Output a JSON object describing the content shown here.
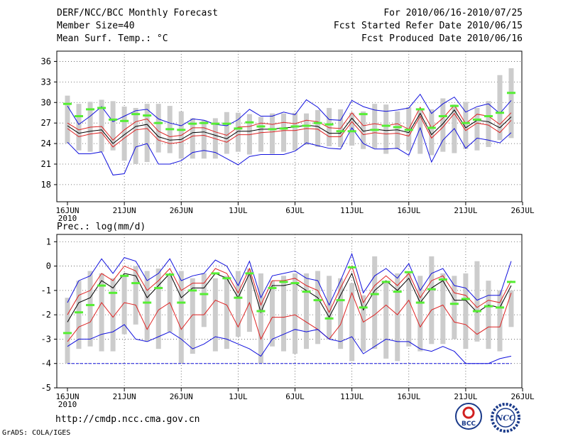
{
  "header": {
    "title": "DERF/NCC/BCC Monthly Forecast",
    "member_size": "Member Size=40",
    "variable": "Mean Surf. Temp.: °C",
    "period": "For 2010/06/16-2010/07/25",
    "started": "Fcst Started Refer Date 2010/06/15",
    "produced": "Fcst Produced Date 2010/06/16"
  },
  "footer": {
    "url": "http://cmdp.ncc.cma.gov.cn",
    "grads": "GrADS: COLA/IGES",
    "logo_bcc": "BCC",
    "logo_ncc": "NCC"
  },
  "colors": {
    "bar": "#cccccc",
    "median": "#55ee33",
    "mean": "#000000",
    "inner": "#dd2222",
    "outer": "#1111dd",
    "floor": "#1111dd"
  },
  "chart_data": [
    {
      "type": "line",
      "title": "Mean Surf. Temp.: °C",
      "x_ticks": [
        "16JUN",
        "21JUN",
        "26JUN",
        "1JUL",
        "6JUL",
        "11JUL",
        "16JUL",
        "21JUL",
        "26JUL"
      ],
      "x_sublabel": "2010",
      "y_ticks": [
        18,
        21,
        24,
        27,
        30,
        33,
        36
      ],
      "ylim": [
        15.5,
        37.5
      ],
      "days": 40,
      "bar_top": [
        31.0,
        29.8,
        30.1,
        30.4,
        30.2,
        29.4,
        29.2,
        29.8,
        29.8,
        29.5,
        28.7,
        27.7,
        27.4,
        27.7,
        28.6,
        28.5,
        28.3,
        27.9,
        28.4,
        28.4,
        28.5,
        28.4,
        28.9,
        29.2,
        29.0,
        28.5,
        28.7,
        29.8,
        29.7,
        28.7,
        29.3,
        28.9,
        29.0,
        30.6,
        29.7,
        30.1,
        29.2,
        30.2,
        34.0,
        35.0
      ],
      "bar_bottom": [
        24.0,
        23.0,
        22.8,
        22.8,
        23.0,
        21.5,
        21.0,
        21.3,
        22.7,
        22.6,
        21.8,
        21.8,
        21.8,
        21.8,
        22.5,
        22.8,
        22.4,
        22.8,
        22.5,
        22.8,
        23.0,
        23.8,
        23.5,
        23.6,
        23.5,
        23.7,
        23.2,
        23.3,
        22.5,
        23.2,
        23.0,
        22.5,
        22.3,
        22.8,
        22.6,
        23.2,
        23.0,
        23.5,
        24.5,
        24.8
      ],
      "series": [
        {
          "name": "median",
          "values": [
            29.8,
            28.0,
            29.0,
            29.2,
            27.5,
            27.3,
            28.3,
            28.1,
            27.0,
            26.1,
            26.0,
            26.9,
            27.0,
            26.9,
            26.9,
            26.2,
            27.1,
            26.5,
            26.1,
            26.2,
            26.5,
            26.6,
            27.0,
            26.8,
            25.8,
            25.8,
            28.3,
            26.0,
            26.6,
            26.4,
            26.0,
            29.0,
            26.3,
            28.0,
            29.5,
            27.0,
            27.5,
            28.0,
            28.5,
            31.4
          ]
        },
        {
          "name": "outer_upper",
          "values": [
            29.5,
            26.8,
            28.0,
            29.4,
            27.2,
            28.0,
            28.8,
            29.0,
            27.6,
            27.0,
            26.6,
            27.6,
            27.4,
            26.8,
            26.6,
            27.5,
            29.0,
            28.0,
            28.0,
            28.6,
            28.2,
            30.4,
            29.3,
            27.5,
            27.4,
            30.3,
            29.4,
            28.9,
            28.7,
            28.9,
            29.2,
            31.2,
            28.4,
            29.8,
            30.8,
            28.6,
            29.4,
            29.8,
            28.4,
            30.3
          ]
        },
        {
          "name": "inner_upper",
          "values": [
            27.0,
            26.0,
            26.4,
            26.5,
            24.5,
            26.0,
            27.2,
            27.6,
            25.8,
            25.0,
            25.2,
            26.3,
            26.3,
            25.7,
            25.2,
            26.4,
            26.5,
            27.0,
            26.8,
            27.1,
            26.9,
            27.4,
            27.2,
            26.3,
            26.2,
            28.5,
            26.6,
            26.9,
            26.6,
            26.9,
            26.1,
            29.3,
            26.3,
            27.7,
            29.6,
            26.9,
            28.3,
            28.0,
            26.8,
            28.5
          ]
        },
        {
          "name": "mean",
          "values": [
            26.6,
            25.5,
            25.8,
            26.0,
            24.0,
            25.3,
            26.5,
            26.8,
            25.0,
            24.5,
            24.6,
            25.6,
            25.7,
            25.2,
            24.7,
            25.8,
            25.8,
            26.1,
            26.1,
            26.3,
            26.4,
            26.7,
            26.5,
            25.5,
            25.5,
            27.7,
            25.8,
            26.1,
            25.9,
            26.0,
            25.6,
            28.4,
            25.3,
            26.9,
            28.9,
            26.3,
            27.4,
            27.2,
            26.3,
            27.9
          ]
        },
        {
          "name": "inner_lower",
          "values": [
            26.2,
            25.0,
            25.4,
            25.6,
            23.5,
            24.8,
            26.0,
            26.2,
            24.5,
            24.0,
            24.2,
            25.1,
            25.2,
            24.7,
            24.2,
            25.3,
            25.3,
            25.6,
            25.7,
            25.9,
            25.9,
            26.2,
            26.1,
            25.0,
            25.0,
            27.2,
            25.3,
            25.6,
            25.4,
            25.5,
            25.1,
            28.0,
            24.8,
            26.4,
            28.4,
            25.9,
            27.0,
            26.7,
            25.6,
            27.4
          ]
        },
        {
          "name": "outer_lower",
          "values": [
            24.2,
            22.5,
            22.5,
            22.8,
            19.4,
            19.6,
            23.5,
            24.0,
            21.0,
            21.0,
            21.5,
            22.7,
            23.0,
            22.7,
            21.8,
            20.9,
            22.1,
            22.4,
            22.4,
            22.4,
            22.9,
            24.1,
            23.7,
            23.3,
            23.2,
            26.3,
            24.0,
            23.2,
            23.2,
            23.3,
            22.3,
            26.3,
            21.3,
            24.5,
            26.2,
            23.3,
            24.8,
            24.5,
            24.1,
            25.6
          ]
        }
      ]
    },
    {
      "type": "line",
      "title": "Prec.: log(mm/d)",
      "x_ticks": [
        "16JUN",
        "21JUN",
        "26JUN",
        "1JUL",
        "6JUL",
        "11JUL",
        "16JUL",
        "21JUL",
        "26JUL"
      ],
      "x_sublabel": "2010",
      "y_ticks": [
        -5,
        -4,
        -3,
        -2,
        -1,
        0,
        1
      ],
      "ylim": [
        -5,
        1.3
      ],
      "days": 40,
      "floor": -4,
      "bar_top": [
        -1.3,
        -0.6,
        -0.2,
        -0.3,
        -0.5,
        -0.4,
        0.0,
        -0.2,
        -0.1,
        -0.4,
        -0.2,
        -0.5,
        -0.3,
        -0.5,
        -0.4,
        -0.2,
        -0.1,
        -0.3,
        -0.6,
        -0.4,
        -0.3,
        -0.3,
        -0.2,
        -0.4,
        -0.5,
        -0.7,
        -1.2,
        0.4,
        -0.6,
        -0.3,
        -0.3,
        -0.4,
        0.4,
        -0.3,
        -0.4,
        -0.3,
        0.2,
        -0.6,
        -1.0,
        -1.0
      ],
      "bar_bottom": [
        -4.0,
        -3.4,
        -3.3,
        -3.5,
        -3.5,
        -2.8,
        -2.4,
        -3.1,
        -3.4,
        -2.7,
        -4.0,
        -3.6,
        -2.5,
        -3.5,
        -3.4,
        -2.9,
        -2.7,
        -4.0,
        -3.3,
        -3.5,
        -3.6,
        -3.4,
        -3.2,
        -3.0,
        -3.4,
        -3.9,
        -3.5,
        -3.4,
        -3.8,
        -3.9,
        -3.3,
        -3.5,
        -3.2,
        -3.2,
        -3.0,
        -3.4,
        -3.1,
        -3.4,
        -3.5,
        -2.5
      ],
      "series": [
        {
          "name": "median",
          "values": [
            -2.75,
            -1.9,
            -1.6,
            -0.8,
            -1.1,
            -0.4,
            -0.7,
            -1.5,
            -0.9,
            -0.35,
            -1.5,
            -1.0,
            -1.15,
            -0.3,
            -0.5,
            -1.3,
            -0.3,
            -1.85,
            -0.9,
            -0.65,
            -0.7,
            -1.05,
            -1.4,
            -2.15,
            -1.4,
            -0.05,
            -1.7,
            -1.15,
            -0.65,
            -1.05,
            -0.25,
            -1.5,
            -0.95,
            -0.55,
            -1.55,
            -1.35,
            -1.85,
            -1.65,
            -1.7,
            -0.65
          ]
        },
        {
          "name": "outer_upper",
          "values": [
            -1.5,
            -0.6,
            -0.4,
            0.3,
            -0.3,
            0.35,
            0.2,
            -0.6,
            -0.3,
            0.3,
            -0.6,
            -0.4,
            -0.3,
            0.25,
            0.0,
            -0.8,
            0.2,
            -1.3,
            -0.4,
            -0.3,
            -0.2,
            -0.5,
            -0.6,
            -1.6,
            -0.6,
            0.5,
            -1.1,
            -0.4,
            -0.1,
            -0.5,
            0.1,
            -1.0,
            -0.3,
            -0.1,
            -0.8,
            -0.9,
            -1.4,
            -1.2,
            -1.2,
            0.2
          ]
        },
        {
          "name": "inner_upper",
          "values": [
            -2.0,
            -1.2,
            -1.0,
            -0.3,
            -0.6,
            0.0,
            -0.2,
            -1.0,
            -0.6,
            -0.1,
            -1.0,
            -0.7,
            -0.7,
            -0.1,
            -0.3,
            -1.1,
            -0.1,
            -1.6,
            -0.6,
            -0.6,
            -0.5,
            -0.8,
            -1.0,
            -1.9,
            -0.9,
            0.0,
            -1.5,
            -0.8,
            -0.4,
            -0.8,
            -0.3,
            -1.3,
            -0.6,
            -0.4,
            -1.1,
            -1.2,
            -1.7,
            -1.4,
            -1.5,
            -0.6
          ]
        },
        {
          "name": "mean",
          "values": [
            -2.3,
            -1.5,
            -1.3,
            -0.6,
            -0.9,
            -0.3,
            -0.4,
            -1.3,
            -0.8,
            -0.3,
            -1.3,
            -0.9,
            -0.9,
            -0.3,
            -0.5,
            -1.3,
            -0.3,
            -1.9,
            -0.8,
            -0.8,
            -0.7,
            -1.0,
            -1.3,
            -2.1,
            -1.2,
            -0.3,
            -1.8,
            -1.0,
            -0.6,
            -1.0,
            -0.5,
            -1.5,
            -0.9,
            -0.6,
            -1.4,
            -1.4,
            -1.9,
            -1.6,
            -1.7,
            -0.8
          ]
        },
        {
          "name": "inner_lower",
          "values": [
            -3.1,
            -2.5,
            -2.3,
            -1.5,
            -2.1,
            -1.5,
            -1.6,
            -2.6,
            -1.8,
            -1.5,
            -2.6,
            -2.0,
            -2.0,
            -1.4,
            -1.6,
            -2.5,
            -1.5,
            -3.0,
            -2.1,
            -2.1,
            -2.0,
            -2.3,
            -2.6,
            -3.0,
            -2.4,
            -1.1,
            -2.3,
            -2.0,
            -1.6,
            -2.0,
            -1.4,
            -2.5,
            -1.8,
            -1.6,
            -2.3,
            -2.4,
            -2.8,
            -2.5,
            -2.5,
            -1.1
          ]
        },
        {
          "name": "outer_lower",
          "values": [
            -3.3,
            -3.0,
            -3.0,
            -2.8,
            -2.7,
            -2.4,
            -3.0,
            -3.1,
            -2.9,
            -2.7,
            -3.0,
            -3.4,
            -3.2,
            -2.9,
            -3.0,
            -3.2,
            -3.4,
            -3.7,
            -3.0,
            -2.8,
            -2.6,
            -2.7,
            -2.6,
            -3.0,
            -3.1,
            -2.9,
            -3.6,
            -3.3,
            -3.0,
            -3.1,
            -3.1,
            -3.4,
            -3.5,
            -3.3,
            -3.5,
            -4.0,
            -4.0,
            -4.0,
            -3.8,
            -3.7
          ]
        }
      ]
    }
  ]
}
